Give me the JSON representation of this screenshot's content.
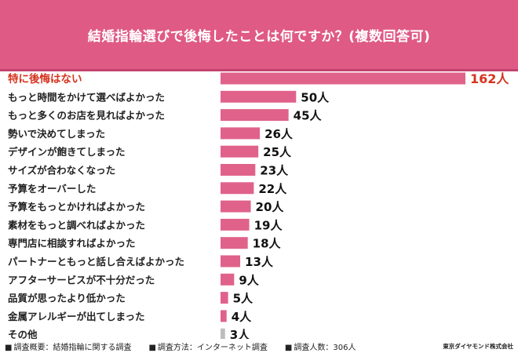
{
  "chart_data": {
    "type": "bar",
    "orientation": "horizontal",
    "title": "結婚指輪選びで後悔したことは何ですか？(複数回答可)",
    "categories": [
      "特に後悔はない",
      "もっと時間をかけて選べばよかった",
      "もっと多くのお店を見ればよかった",
      "勢いで決めてしまった",
      "デザインが飽きてしまった",
      "サイズが合わなくなった",
      "予算をオーバーした",
      "予算をもっとかければよかった",
      "素材をもっと調べればよかった",
      "専門店に相談すればよかった",
      "パートナーともっと話し合えばよかった",
      "アフターサービスが不十分だった",
      "品質が思ったより低かった",
      "金属アレルギーが出てしまった",
      "その他"
    ],
    "values": [
      162,
      50,
      45,
      26,
      25,
      23,
      22,
      20,
      19,
      18,
      13,
      9,
      5,
      4,
      3
    ],
    "value_labels": [
      "162人",
      "50人",
      "45人",
      "26人",
      "25人",
      "23人",
      "22人",
      "20人",
      "19人",
      "18人",
      "13人",
      "9人",
      "5人",
      "4人",
      "3人"
    ],
    "xlim": [
      0,
      162
    ],
    "grid": false,
    "colors": {
      "bar": "#e0628b",
      "other_bar": "#bdbdbd",
      "highlight_text": "#d6331f",
      "header": "#e05a86"
    }
  },
  "footer": {
    "survey_overview": "調査概要：結婚指輪に関する調査",
    "survey_method": "調査方法：インターネット調査",
    "respondents": "調査人数：306人",
    "credit": "東京ダイヤモンド株式会社"
  }
}
